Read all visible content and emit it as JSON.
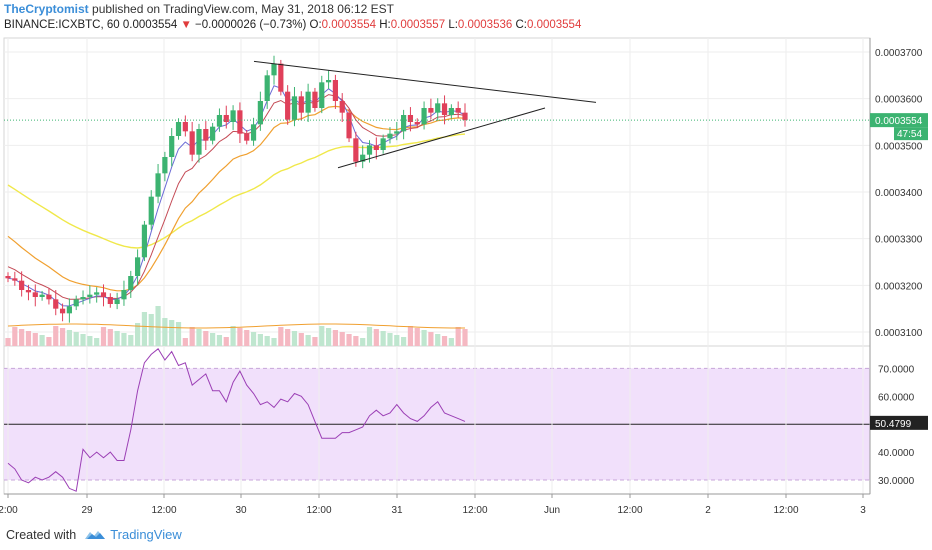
{
  "header": {
    "author": "TheCryptomist",
    "published_text": "published on TradingView.com, May 31, 2018 06:12 EST",
    "symbol_line": "BINANCE:ICXBTC, 60",
    "last_price": "0.0003554",
    "change_arrow": "▼",
    "change": "−0.0000026 (−0.73%)",
    "o_label": "O:",
    "o_value": "0.0003554",
    "h_label": "H:",
    "h_value": "0.0003557",
    "l_label": "L:",
    "l_value": "0.0003536",
    "c_label": "C:",
    "c_value": "0.0003554"
  },
  "footer": {
    "created_with": "Created with",
    "brand": "TradingView"
  },
  "colors": {
    "up": "#3cb371",
    "down": "#e0405a",
    "volume_up": "#bfe6cf",
    "volume_down": "#f5b8c2",
    "ma_fast": "#6b6bd6",
    "ma_mid": "#f0a030",
    "ma_slow": "#f0e84a",
    "ma_red": "#c44a55",
    "rsi_line": "#9b3fb5",
    "rsi_band": "#f1e0fb",
    "price_tag": "#3cb371",
    "author": "#3b8ed8"
  },
  "chart_data": [
    {
      "type": "line",
      "panel": "price",
      "price_axis_labels": [
        "0.0003700",
        "0.0003600",
        "0.0003500",
        "0.0003400",
        "0.0003300",
        "0.0003200",
        "0.0003100"
      ],
      "price_axis_values": [
        0.00037,
        0.00036,
        0.00035,
        0.00034,
        0.00033,
        0.00032,
        0.00031
      ],
      "ylim": [
        0.000307,
        0.000373
      ],
      "current_price_label": "0.0003554",
      "current_price": 0.0003554,
      "countdown_label": "47:54",
      "time_axis_labels": [
        "2:00",
        "29",
        "12:00",
        "30",
        "12:00",
        "31",
        "12:00",
        "Jun",
        "12:00",
        "2",
        "12:00",
        "3"
      ],
      "close_prices": [
        0.0003215,
        0.000321,
        0.000319,
        0.0003185,
        0.0003175,
        0.000318,
        0.000317,
        0.000315,
        0.000314,
        0.0003155,
        0.000317,
        0.0003175,
        0.000318,
        0.0003185,
        0.0003175,
        0.000316,
        0.000317,
        0.000319,
        0.000322,
        0.000326,
        0.000333,
        0.000339,
        0.000344,
        0.0003475,
        0.000352,
        0.000355,
        0.000353,
        0.000348,
        0.0003535,
        0.000351,
        0.000354,
        0.0003565,
        0.000355,
        0.0003575,
        0.0003525,
        0.000351,
        0.0003545,
        0.0003595,
        0.000365,
        0.0003675,
        0.0003615,
        0.0003555,
        0.0003605,
        0.000357,
        0.0003615,
        0.000358,
        0.0003635,
        0.000364,
        0.0003595,
        0.000357,
        0.0003515,
        0.0003465,
        0.000348,
        0.00035,
        0.000349,
        0.0003515,
        0.0003525,
        0.000353,
        0.0003565,
        0.000355,
        0.0003545,
        0.000358,
        0.000357,
        0.000359,
        0.0003565,
        0.000358,
        0.000357,
        0.0003554
      ],
      "trendlines": [
        {
          "t1": 0,
          "v1": 0.000368,
          "t2": 1.39,
          "v2": 0.0003577
        },
        {
          "t1": 0.0,
          "v1": 0.0003452,
          "t2": 0.92,
          "v2": 0.0003592
        }
      ],
      "trendline_anchor_times": [
        0.42,
        1.06
      ]
    },
    {
      "type": "line",
      "panel": "rsi",
      "rsi_axis_labels": [
        "70.0000",
        "60.0000",
        "50.0000",
        "40.0000",
        "30.0000"
      ],
      "rsi_axis_values": [
        70,
        60,
        50,
        40,
        30
      ],
      "ylim": [
        25,
        78
      ],
      "current_rsi_label": "50.4799",
      "current_rsi": 50.48,
      "rsi_values": [
        36,
        34,
        30,
        29,
        31,
        30,
        31,
        33,
        31,
        27,
        26,
        41,
        38,
        40,
        38,
        40,
        37,
        37,
        48,
        62,
        72,
        75,
        77,
        73,
        76,
        71,
        72,
        64,
        66,
        68,
        62,
        62,
        58,
        65,
        69,
        64,
        61,
        57,
        58,
        56,
        59,
        58,
        61,
        60,
        57,
        51,
        45,
        45,
        45,
        47,
        47,
        48,
        49,
        53,
        55,
        53,
        54,
        57,
        54,
        52,
        51,
        53,
        56,
        58,
        54,
        53,
        52,
        51
      ]
    }
  ]
}
